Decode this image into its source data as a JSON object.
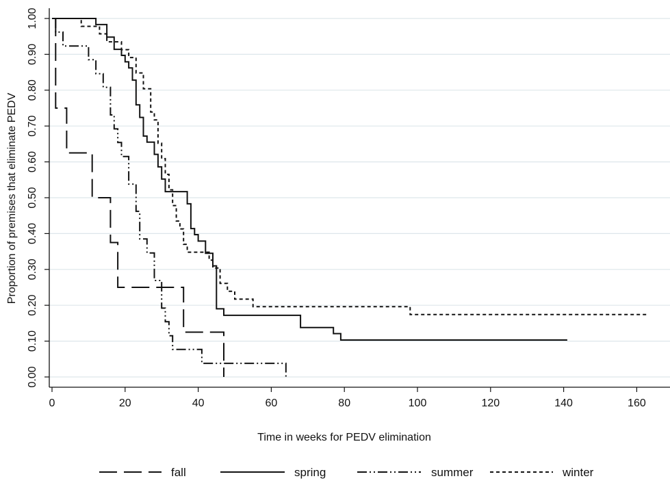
{
  "chart_data": {
    "type": "line",
    "title": "",
    "xlabel": "Time in weeks for PEDV elimination",
    "ylabel": "Proportion of premises that eliminate PEDV",
    "xlim": [
      0,
      163
    ],
    "ylim": [
      0,
      1.0
    ],
    "x_ticks": [
      0,
      20,
      40,
      60,
      80,
      100,
      120,
      140,
      160
    ],
    "y_ticks": [
      "0.00",
      "0.10",
      "0.20",
      "0.30",
      "0.40",
      "0.50",
      "0.60",
      "0.70",
      "0.80",
      "0.90",
      "1.00"
    ],
    "grid": "horizontal",
    "legend_position": "bottom",
    "step": true,
    "colors": {
      "line": "#111111",
      "grid": "#dde6ea",
      "axis": "#111111"
    },
    "series": [
      {
        "name": "fall",
        "dash": "long-dash",
        "x": [
          1,
          1,
          4,
          4,
          11,
          11,
          16,
          16,
          18,
          18,
          36,
          36,
          47,
          47
        ],
        "y": [
          1.0,
          0.75,
          0.75,
          0.625,
          0.625,
          0.5,
          0.5,
          0.375,
          0.375,
          0.25,
          0.25,
          0.125,
          0.125,
          0.0
        ]
      },
      {
        "name": "spring",
        "dash": "solid",
        "x": [
          0,
          12,
          12,
          15,
          15,
          17,
          17,
          19,
          19,
          20,
          20,
          21,
          21,
          22,
          22,
          23,
          23,
          24,
          24,
          25,
          25,
          26,
          26,
          28,
          28,
          29,
          29,
          30,
          30,
          31,
          31,
          37,
          37,
          38,
          38,
          39,
          39,
          40,
          40,
          42,
          42,
          44,
          44,
          45,
          45,
          47,
          47,
          68,
          68,
          77,
          77,
          79,
          79,
          141
        ],
        "y": [
          1.0,
          1.0,
          0.983,
          0.983,
          0.948,
          0.948,
          0.914,
          0.914,
          0.897,
          0.897,
          0.879,
          0.879,
          0.862,
          0.862,
          0.828,
          0.828,
          0.759,
          0.759,
          0.724,
          0.724,
          0.672,
          0.672,
          0.655,
          0.655,
          0.621,
          0.621,
          0.586,
          0.586,
          0.552,
          0.552,
          0.517,
          0.517,
          0.483,
          0.483,
          0.414,
          0.414,
          0.397,
          0.397,
          0.379,
          0.379,
          0.345,
          0.345,
          0.31,
          0.31,
          0.19,
          0.19,
          0.172,
          0.172,
          0.138,
          0.138,
          0.121,
          0.121,
          0.103,
          0.103
        ]
      },
      {
        "name": "summer",
        "dash": "dash-dot-dot",
        "x": [
          1,
          1,
          3,
          3,
          10,
          10,
          12,
          12,
          14,
          14,
          16,
          16,
          17,
          17,
          18,
          18,
          19,
          19,
          21,
          21,
          23,
          23,
          24,
          24,
          26,
          26,
          28,
          28,
          30,
          30,
          31,
          31,
          32,
          32,
          33,
          33,
          41,
          41,
          64,
          64
        ],
        "y": [
          1.0,
          0.962,
          0.962,
          0.923,
          0.923,
          0.885,
          0.885,
          0.846,
          0.846,
          0.808,
          0.808,
          0.731,
          0.731,
          0.692,
          0.692,
          0.654,
          0.654,
          0.615,
          0.615,
          0.538,
          0.538,
          0.462,
          0.462,
          0.385,
          0.385,
          0.346,
          0.346,
          0.269,
          0.269,
          0.192,
          0.192,
          0.154,
          0.154,
          0.115,
          0.115,
          0.077,
          0.077,
          0.038,
          0.038,
          0.0
        ]
      },
      {
        "name": "winter",
        "dash": "short-dash",
        "x": [
          0,
          8,
          8,
          13,
          13,
          15,
          15,
          19,
          19,
          21,
          21,
          23,
          23,
          25,
          25,
          27,
          27,
          28,
          28,
          29,
          29,
          30,
          30,
          31,
          31,
          32,
          32,
          33,
          33,
          34,
          34,
          35,
          35,
          36,
          36,
          37,
          37,
          43,
          43,
          44,
          44,
          46,
          46,
          48,
          48,
          50,
          50,
          55,
          55,
          98,
          98,
          163
        ],
        "y": [
          1.0,
          1.0,
          0.978,
          0.978,
          0.957,
          0.957,
          0.935,
          0.935,
          0.913,
          0.913,
          0.891,
          0.891,
          0.848,
          0.848,
          0.804,
          0.804,
          0.739,
          0.739,
          0.717,
          0.717,
          0.652,
          0.652,
          0.609,
          0.609,
          0.565,
          0.565,
          0.522,
          0.522,
          0.478,
          0.478,
          0.435,
          0.435,
          0.413,
          0.413,
          0.37,
          0.37,
          0.348,
          0.348,
          0.326,
          0.326,
          0.304,
          0.304,
          0.261,
          0.261,
          0.239,
          0.239,
          0.217,
          0.217,
          0.196,
          0.196,
          0.174,
          0.174
        ]
      }
    ]
  }
}
